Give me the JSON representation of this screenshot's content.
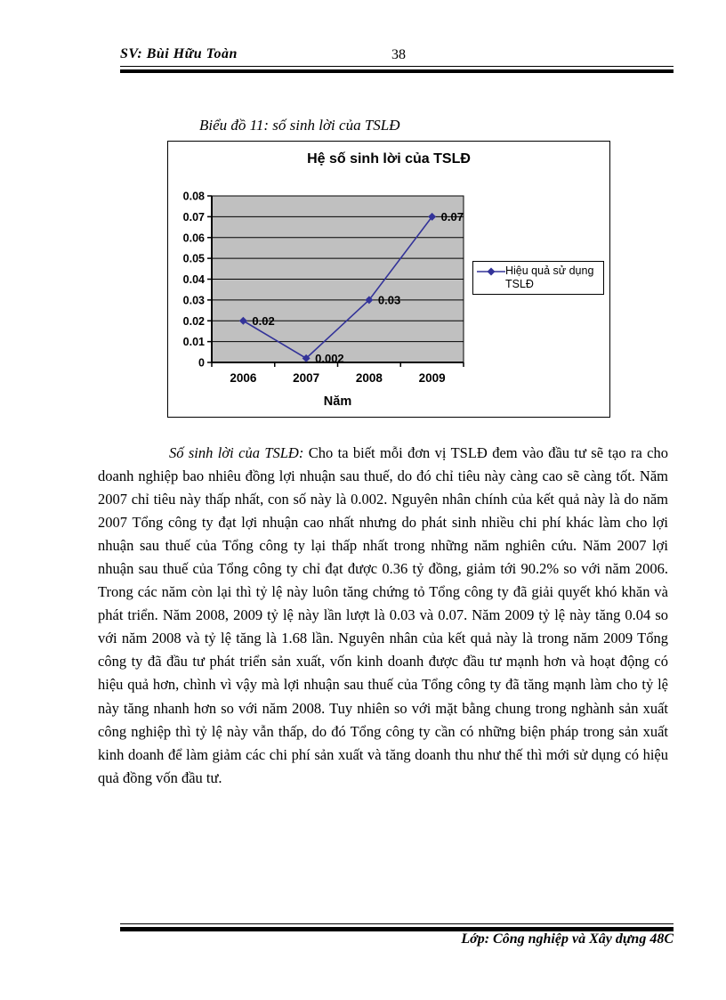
{
  "header": {
    "author": "SV: Bùi Hữu Toàn",
    "page_number": "38"
  },
  "caption": "Biểu đồ 11: số sinh lời của TSLĐ",
  "chart_data": {
    "type": "line",
    "title": "Hệ số sinh lời của TSLĐ",
    "categories": [
      "2006",
      "2007",
      "2008",
      "2009"
    ],
    "series": [
      {
        "name": "Hiệu quả sử dụng TSLĐ",
        "values": [
          0.02,
          0.002,
          0.03,
          0.07
        ]
      }
    ],
    "point_labels": [
      "0.02",
      "0.002",
      "0.03",
      "0.07"
    ],
    "xlabel": "Năm",
    "ylim": [
      0,
      0.08
    ],
    "ytick_labels": [
      "0",
      "0.01",
      "0.02",
      "0.03",
      "0.04",
      "0.05",
      "0.06",
      "0.07",
      "0.08"
    ],
    "grid": true,
    "legend_position": "right",
    "line_color": "#333399",
    "plot_bg": "#c0c0c0"
  },
  "body": {
    "lead": "Số sinh lời của TSLĐ:",
    "text": " Cho ta biết mỗi đơn vị TSLĐ đem vào đầu tư sẽ tạo ra cho doanh nghiệp bao nhiêu đồng lợi nhuận sau thuế, do đó chỉ tiêu này càng cao sẽ càng tốt. Năm 2007 chỉ tiêu này thấp nhất, con số này là 0.002. Nguyên nhân chính của kết quả này là do năm 2007 Tổng công ty đạt lợi nhuận cao nhất nhưng do phát sinh nhiều chi phí khác làm cho lợi nhuận sau thuế của Tổng công ty lại thấp nhất trong những năm nghiên cứu. Năm 2007 lợi nhuận sau thuế của Tổng công ty chỉ đạt được 0.36 tỷ đồng, giảm tới 90.2% so với năm 2006. Trong các năm còn lại thì tỷ lệ này luôn tăng chứng tỏ Tổng công ty đã giải quyết khó khăn và phát triển. Năm 2008, 2009 tỷ lệ này lần lượt là 0.03 và 0.07. Năm 2009 tỷ lệ này tăng 0.04 so với năm 2008 và tỷ lệ tăng là 1.68 lần. Nguyên nhân của kết quả này là trong năm 2009 Tổng công ty đã đầu tư phát triển sản xuất, vốn kinh doanh được đầu tư mạnh hơn và hoạt động có hiệu quả hơn, chình vì vậy mà lợi nhuận sau thuế của Tổng công ty đã tăng mạnh làm cho tỷ lệ này tăng nhanh hơn so với năm 2008. Tuy nhiên so với mặt bằng chung trong nghành sản xuất công nghiệp thì tỷ lệ này vẫn thấp, do đó Tổng công ty cần có những biện pháp trong sản xuất kinh doanh để làm giảm các chi phí sản xuất và tăng doanh thu như thế thì mới sử dụng có hiệu quả đồng vốn đầu tư."
  },
  "footer": {
    "class_label": "Lớp: Công nghiệp và Xây dựng 48C"
  }
}
